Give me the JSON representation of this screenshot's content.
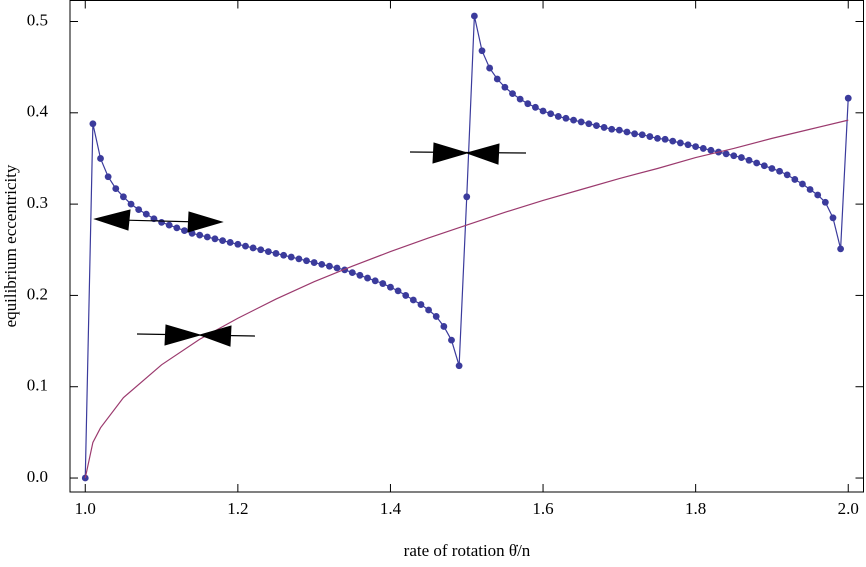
{
  "chart_data": {
    "type": "line",
    "xlabel": "rate of rotation θ̇/n",
    "ylabel": "equilibrium eccentricity",
    "xlim": [
      0.98,
      2.02
    ],
    "ylim": [
      -0.0153,
      0.523
    ],
    "xticks": [
      {
        "value": 1.0,
        "label": "1.0"
      },
      1.2,
      1.4,
      1.6,
      1.8,
      {
        "value": 2.0,
        "label": "2.0"
      }
    ],
    "yticks": [
      {
        "value": 0.0,
        "label": "0.0"
      },
      0.1,
      0.2,
      0.3,
      0.4,
      0.5
    ],
    "series": [
      {
        "color": "#3b3b9c",
        "markers": true,
        "x": [
          1.0,
          1.01,
          1.02,
          1.03,
          1.04,
          1.05,
          1.06,
          1.07,
          1.08,
          1.09,
          1.1,
          1.11,
          1.12,
          1.13,
          1.14,
          1.15,
          1.16,
          1.17,
          1.18,
          1.19,
          1.2,
          1.21,
          1.22,
          1.23,
          1.24,
          1.25,
          1.26,
          1.27,
          1.28,
          1.29,
          1.3,
          1.31,
          1.32,
          1.33,
          1.34,
          1.35,
          1.36,
          1.37,
          1.38,
          1.39,
          1.4,
          1.41,
          1.42,
          1.43,
          1.44,
          1.45,
          1.46,
          1.47,
          1.48,
          1.49,
          1.5,
          1.51,
          1.52,
          1.53,
          1.54,
          1.55,
          1.56,
          1.57,
          1.58,
          1.59,
          1.6,
          1.61,
          1.62,
          1.63,
          1.64,
          1.65,
          1.66,
          1.67,
          1.68,
          1.69,
          1.7,
          1.71,
          1.72,
          1.73,
          1.74,
          1.75,
          1.76,
          1.77,
          1.78,
          1.79,
          1.8,
          1.81,
          1.82,
          1.83,
          1.84,
          1.85,
          1.86,
          1.87,
          1.88,
          1.89,
          1.9,
          1.91,
          1.92,
          1.93,
          1.94,
          1.95,
          1.96,
          1.97,
          1.98,
          1.99,
          2.0
        ],
        "values": [
          0,
          0.388,
          0.35,
          0.33,
          0.317,
          0.308,
          0.3,
          0.294,
          0.289,
          0.284,
          0.28,
          0.277,
          0.274,
          0.271,
          0.268,
          0.266,
          0.264,
          0.262,
          0.26,
          0.258,
          0.256,
          0.254,
          0.252,
          0.25,
          0.248,
          0.246,
          0.244,
          0.242,
          0.24,
          0.238,
          0.236,
          0.234,
          0.232,
          0.23,
          0.228,
          0.225,
          0.222,
          0.219,
          0.216,
          0.213,
          0.209,
          0.205,
          0.2,
          0.195,
          0.19,
          0.184,
          0.177,
          0.166,
          0.151,
          0.123,
          0.308,
          0.506,
          0.468,
          0.449,
          0.437,
          0.428,
          0.421,
          0.415,
          0.41,
          0.406,
          0.402,
          0.399,
          0.396,
          0.394,
          0.392,
          0.39,
          0.388,
          0.386,
          0.384,
          0.382,
          0.381,
          0.379,
          0.377,
          0.376,
          0.374,
          0.372,
          0.371,
          0.369,
          0.367,
          0.365,
          0.363,
          0.361,
          0.359,
          0.357,
          0.355,
          0.353,
          0.351,
          0.348,
          0.345,
          0.342,
          0.339,
          0.336,
          0.332,
          0.327,
          0.322,
          0.316,
          0.31,
          0.302,
          0.285,
          0.251,
          0.416
        ]
      },
      {
        "color": "#9b3a6e",
        "markers": false,
        "x": [
          1.0,
          1.01,
          1.02,
          1.05,
          1.1,
          1.15,
          1.2,
          1.25,
          1.3,
          1.35,
          1.4,
          1.45,
          1.5,
          1.55,
          1.6,
          1.65,
          1.7,
          1.75,
          1.8,
          1.85,
          1.9,
          1.95,
          2.0
        ],
        "values": [
          0,
          0.039,
          0.055,
          0.088,
          0.124,
          0.152,
          0.175,
          0.196,
          0.215,
          0.232,
          0.248,
          0.263,
          0.277,
          0.291,
          0.304,
          0.316,
          0.328,
          0.339,
          0.351,
          0.361,
          0.372,
          0.382,
          0.392
        ]
      }
    ]
  }
}
